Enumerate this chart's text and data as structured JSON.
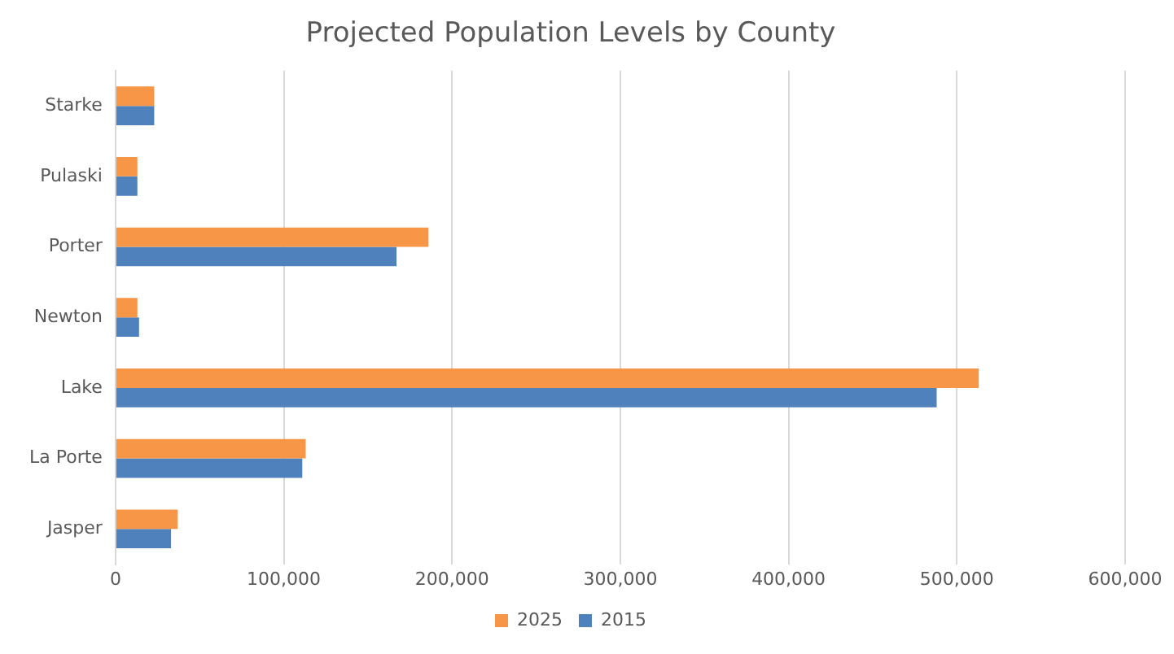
{
  "chart_data": {
    "type": "bar",
    "orientation": "horizontal",
    "title": "Projected Population Levels by County",
    "categories": [
      "Starke",
      "Pulaski",
      "Porter",
      "Newton",
      "Lake",
      "La Porte",
      "Jasper"
    ],
    "series": [
      {
        "name": "2025",
        "color": "#f79646",
        "values": [
          23000,
          13000,
          186000,
          13000,
          513000,
          113000,
          37000
        ]
      },
      {
        "name": "2015",
        "color": "#4f81bd",
        "values": [
          23000,
          13000,
          167000,
          14000,
          488000,
          111000,
          33000
        ]
      }
    ],
    "xlim": [
      0,
      600000
    ],
    "xticks": [
      0,
      {
        "value": 100000,
        "label": "100,000"
      },
      {
        "value": 200000,
        "label": "200,000"
      },
      {
        "value": 300000,
        "label": "300,000"
      },
      {
        "value": 400000,
        "label": "400,000"
      },
      {
        "value": 500000,
        "label": "500,000"
      },
      {
        "value": 600000,
        "label": "600,000"
      }
    ],
    "grid": "x",
    "legend": "bottom"
  }
}
